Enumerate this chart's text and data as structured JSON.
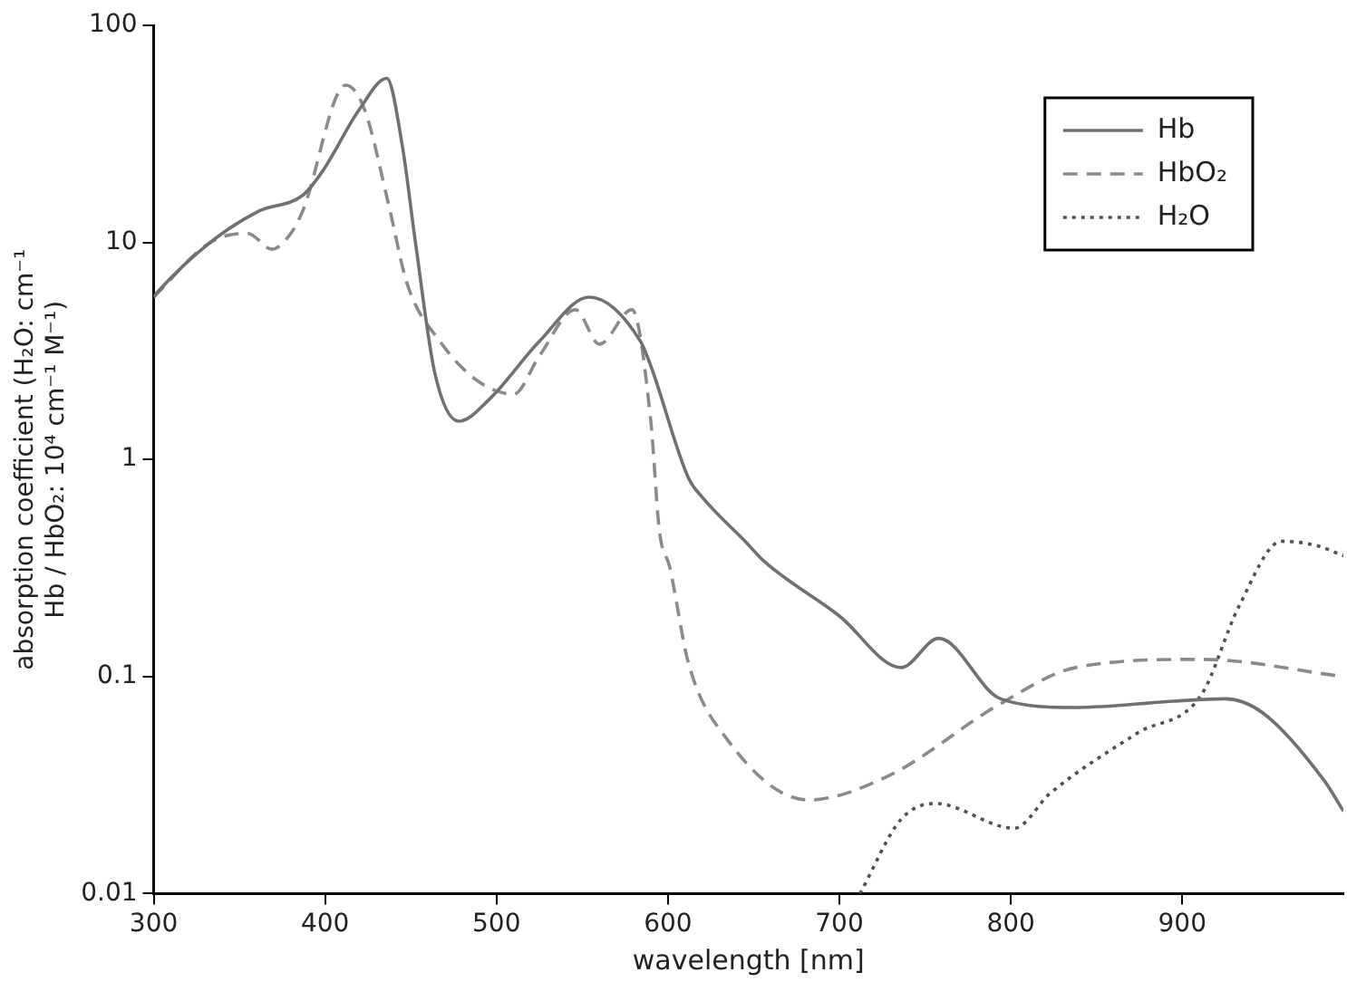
{
  "chart_data": {
    "type": "line",
    "xlabel": "wavelength [nm]",
    "ylabel": "absorption coefficient (H₂O: cm⁻¹\nHb / HbO₂: 10⁴ cm⁻¹ M⁻¹)",
    "xlim": [
      300,
      994
    ],
    "xticks": [
      300,
      400,
      500,
      600,
      700,
      800,
      900
    ],
    "ylim": [
      0.01,
      100
    ],
    "yticks": [
      0.01,
      0.1,
      1,
      10,
      100
    ],
    "log": "y",
    "grid": false,
    "legend": "top right",
    "marker": "none",
    "series": [
      {
        "name": "Hb",
        "color": "#707070",
        "line_style": "solid",
        "x": [
          300,
          303,
          333,
          361,
          387,
          398,
          420,
          436,
          445,
          453,
          464,
          478,
          496,
          525,
          554,
          584,
          590,
          612,
          620,
          645,
          656,
          700,
          736,
          758,
          794,
          838,
          895,
          925,
          947,
          983,
          994
        ],
        "values": [
          5.6,
          6.0,
          10,
          13.9,
          16.5,
          21,
          41,
          57,
          28,
          9.6,
          2.5,
          1.5,
          1.9,
          3.5,
          5.6,
          3.5,
          2.7,
          0.82,
          0.67,
          0.42,
          0.34,
          0.19,
          0.11,
          0.15,
          0.079,
          0.072,
          0.077,
          0.079,
          0.068,
          0.033,
          0.024
        ]
      },
      {
        "name": "HbO₂",
        "color": "#8a8a8a",
        "line_style": "dashed",
        "x": [
          300,
          333,
          355,
          369,
          380,
          387,
          412,
          423,
          437,
          448,
          467,
          489,
          510,
          525,
          546,
          560,
          579,
          590,
          595,
          601,
          612,
          634,
          682,
          729,
          794,
          838,
          911,
          994
        ],
        "values": [
          5.6,
          10,
          11,
          9.3,
          11,
          14,
          53,
          41,
          15,
          6.4,
          3.5,
          2.3,
          2.0,
          3.0,
          4.9,
          3.4,
          4.9,
          1.5,
          0.47,
          0.32,
          0.115,
          0.052,
          0.027,
          0.035,
          0.075,
          0.11,
          0.12,
          0.1
        ]
      },
      {
        "name": "H₂O",
        "color": "#505050",
        "line_style": "dotted",
        "x": [
          712,
          736,
          756,
          802,
          823,
          874,
          911,
          933,
          958,
          979,
          994
        ],
        "values": [
          0.01,
          0.022,
          0.026,
          0.02,
          0.029,
          0.055,
          0.082,
          0.21,
          0.42,
          0.4,
          0.36
        ]
      }
    ]
  }
}
